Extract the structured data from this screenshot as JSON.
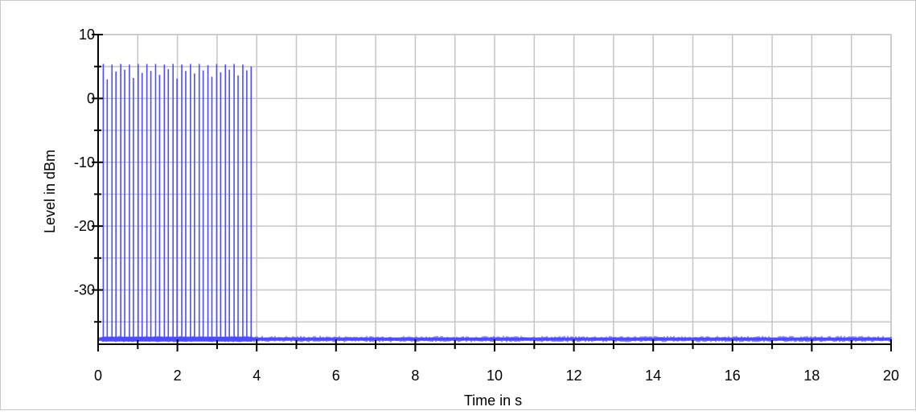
{
  "chart_data": {
    "type": "line",
    "xlabel": "Time in s",
    "ylabel": "Level in dBm",
    "xlim": [
      0,
      20
    ],
    "ylim": [
      -38.5,
      10
    ],
    "x_ticks": [
      0,
      2,
      4,
      6,
      8,
      10,
      12,
      14,
      16,
      18,
      20
    ],
    "x_tick_labels": [
      "0",
      "2",
      "4",
      "6",
      "8",
      "10",
      "12",
      "14",
      "16",
      "18",
      "20"
    ],
    "y_ticks": [
      10,
      0,
      -10,
      -20,
      -30
    ],
    "y_tick_labels": [
      "10",
      "0",
      "-10",
      "-20",
      "-30"
    ],
    "grid": true,
    "series": [
      {
        "color": "#4d4dff",
        "noise_floor": -37.7,
        "burst_region": [
          0.1,
          3.9
        ],
        "bursts": [
          {
            "x": 0.13,
            "y": 5.4
          },
          {
            "x": 0.23,
            "y": 3.0
          },
          {
            "x": 0.35,
            "y": 5.3
          },
          {
            "x": 0.45,
            "y": 4.2
          },
          {
            "x": 0.57,
            "y": 5.4
          },
          {
            "x": 0.67,
            "y": 4.5
          },
          {
            "x": 0.79,
            "y": 5.3
          },
          {
            "x": 0.89,
            "y": 3.2
          },
          {
            "x": 1.01,
            "y": 5.4
          },
          {
            "x": 1.11,
            "y": 4.0
          },
          {
            "x": 1.23,
            "y": 5.4
          },
          {
            "x": 1.33,
            "y": 4.3
          },
          {
            "x": 1.45,
            "y": 5.4
          },
          {
            "x": 1.55,
            "y": 3.7
          },
          {
            "x": 1.67,
            "y": 5.3
          },
          {
            "x": 1.77,
            "y": 4.6
          },
          {
            "x": 1.89,
            "y": 5.4
          },
          {
            "x": 1.99,
            "y": 3.1
          },
          {
            "x": 2.11,
            "y": 5.3
          },
          {
            "x": 2.21,
            "y": 4.3
          },
          {
            "x": 2.33,
            "y": 5.4
          },
          {
            "x": 2.43,
            "y": 3.9
          },
          {
            "x": 2.55,
            "y": 5.4
          },
          {
            "x": 2.65,
            "y": 4.4
          },
          {
            "x": 2.77,
            "y": 5.2
          },
          {
            "x": 2.87,
            "y": 3.4
          },
          {
            "x": 2.99,
            "y": 5.4
          },
          {
            "x": 3.09,
            "y": 4.1
          },
          {
            "x": 3.21,
            "y": 5.3
          },
          {
            "x": 3.31,
            "y": 4.5
          },
          {
            "x": 3.43,
            "y": 5.4
          },
          {
            "x": 3.53,
            "y": 3.6
          },
          {
            "x": 3.65,
            "y": 5.3
          },
          {
            "x": 3.75,
            "y": 4.4
          },
          {
            "x": 3.86,
            "y": 5.0
          }
        ]
      }
    ]
  }
}
